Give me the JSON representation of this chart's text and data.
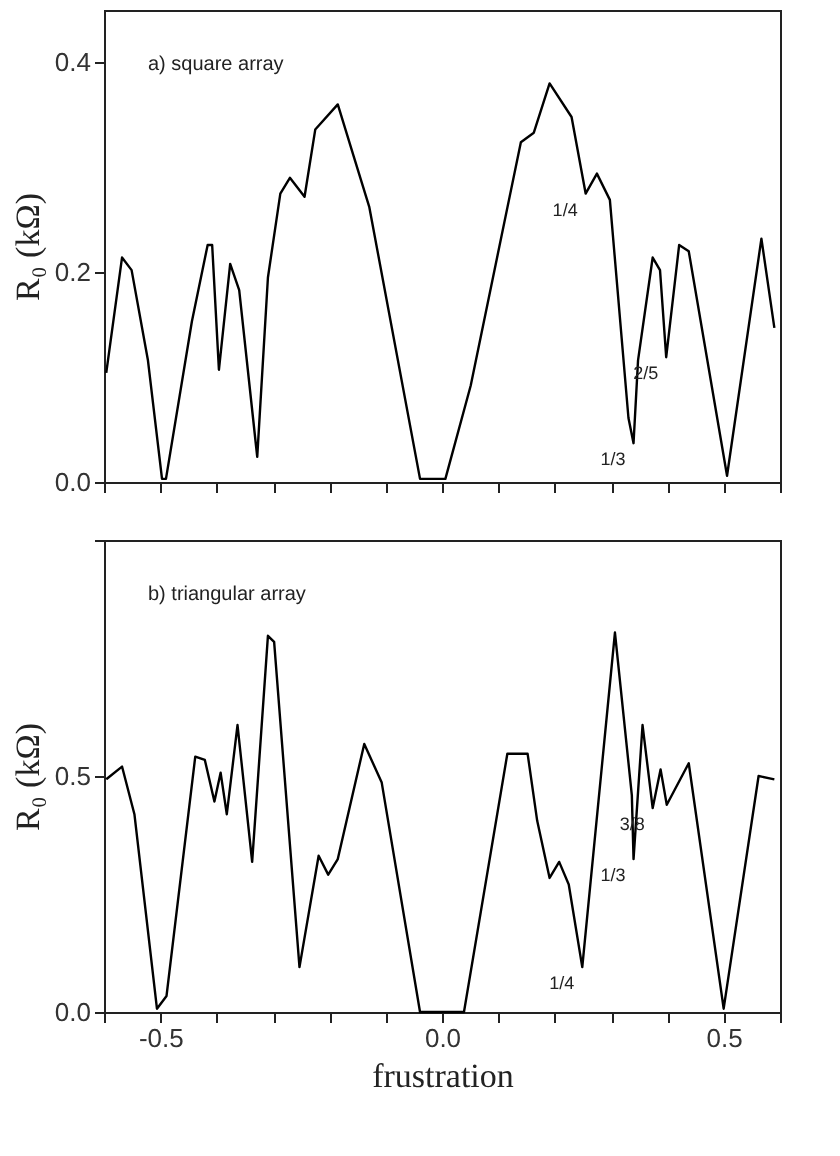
{
  "chart_data": [
    {
      "type": "line",
      "ylabel": "R₀ (kΩ)",
      "xlim": [
        -0.6,
        0.6
      ],
      "ylim": [
        0,
        0.45
      ],
      "xticks": [
        {
          "value": -0.6,
          "label": null
        },
        {
          "value": -0.5,
          "label": null
        },
        {
          "value": -0.4,
          "label": null
        },
        {
          "value": -0.3,
          "label": null
        },
        {
          "value": -0.2,
          "label": null
        },
        {
          "value": -0.1,
          "label": null
        },
        {
          "value": 0,
          "label": null
        },
        {
          "value": 0.1,
          "label": null
        },
        {
          "value": 0.2,
          "label": null
        },
        {
          "value": 0.3,
          "label": null
        },
        {
          "value": 0.4,
          "label": null
        },
        {
          "value": 0.5,
          "label": null
        },
        {
          "value": 0.6,
          "label": null
        }
      ],
      "yticks": [
        {
          "value": 0,
          "label": "0.0"
        },
        {
          "value": 0.2,
          "label": "0.2"
        },
        {
          "value": 0.4,
          "label": "0.4"
        }
      ],
      "tick_labels": "y",
      "grid": false,
      "legend": false,
      "marker": "none",
      "line_style": "solid",
      "x": [
        -0.596,
        -0.568,
        -0.551,
        -0.522,
        -0.497,
        -0.49,
        -0.444,
        -0.416,
        -0.408,
        -0.396,
        -0.376,
        -0.36,
        -0.328,
        -0.309,
        -0.287,
        -0.27,
        -0.244,
        -0.225,
        -0.185,
        -0.157,
        -0.129,
        -0.039,
        0.006,
        0.051,
        0.14,
        0.163,
        0.191,
        0.23,
        0.255,
        0.275,
        0.298,
        0.331,
        0.34,
        0.348,
        0.374,
        0.387,
        0.398,
        0.421,
        0.438,
        0.506,
        0.567,
        0.59
      ],
      "series": [
        {
          "color": "#000000",
          "values": [
            0.104,
            0.214,
            0.202,
            0.116,
            0.003,
            0.003,
            0.153,
            0.226,
            0.226,
            0.107,
            0.208,
            0.183,
            0.024,
            0.195,
            0.275,
            0.29,
            0.272,
            0.336,
            0.36,
            0.311,
            0.262,
            0.003,
            0.003,
            0.092,
            0.324,
            0.333,
            0.38,
            0.348,
            0.275,
            0.294,
            0.269,
            0.061,
            0.037,
            0.116,
            0.214,
            0.202,
            0.119,
            0.226,
            0.22,
            0.006,
            0.232,
            0.147
          ]
        }
      ],
      "annotations": [
        "a) square array",
        {
          "text": "1/4",
          "x": 0.255,
          "y": 0.275
        },
        {
          "text": "2/5",
          "x": 0.398,
          "y": 0.119
        },
        {
          "text": "1/3",
          "x": 0.34,
          "y": 0.037
        }
      ]
    },
    {
      "type": "line",
      "xlabel": "frustration",
      "ylabel": "R₀ (kΩ)",
      "xlim": [
        -0.6,
        0.6
      ],
      "ylim": [
        0,
        1.0
      ],
      "xticks": [
        {
          "value": -0.6,
          "label": null
        },
        -0.5,
        {
          "value": -0.4,
          "label": null
        },
        {
          "value": -0.3,
          "label": null
        },
        {
          "value": -0.2,
          "label": null
        },
        {
          "value": -0.1,
          "label": null
        },
        {
          "value": 0,
          "label": "0.0"
        },
        {
          "value": 0.1,
          "label": null
        },
        {
          "value": 0.2,
          "label": null
        },
        {
          "value": 0.3,
          "label": null
        },
        {
          "value": 0.4,
          "label": null
        },
        0.5,
        {
          "value": 0.6,
          "label": null
        }
      ],
      "yticks": [
        {
          "value": 0,
          "label": "0.0"
        },
        {
          "value": 0.5,
          "label": "0.5"
        },
        {
          "value": 1.0,
          "label": null
        }
      ],
      "grid": false,
      "legend": false,
      "marker": "none",
      "line_style": "solid",
      "x": [
        -0.596,
        -0.568,
        -0.546,
        -0.506,
        -0.489,
        -0.438,
        -0.421,
        -0.404,
        -0.393,
        -0.382,
        -0.363,
        -0.337,
        -0.309,
        -0.298,
        -0.253,
        -0.219,
        -0.202,
        -0.185,
        -0.138,
        -0.107,
        -0.039,
        0.039,
        0.116,
        0.152,
        0.169,
        0.191,
        0.208,
        0.225,
        0.249,
        0.307,
        0.337,
        0.34,
        0.356,
        0.374,
        0.388,
        0.399,
        0.438,
        0.5,
        0.562,
        0.59
      ],
      "series": [
        {
          "color": "#000000",
          "values": [
            0.493,
            0.52,
            0.419,
            0.007,
            0.034,
            0.541,
            0.534,
            0.446,
            0.507,
            0.419,
            0.608,
            0.318,
            0.797,
            0.784,
            0.095,
            0.331,
            0.291,
            0.324,
            0.568,
            0.486,
            0.0,
            0.0,
            0.547,
            0.547,
            0.405,
            0.284,
            0.318,
            0.27,
            0.095,
            0.804,
            0.459,
            0.324,
            0.608,
            0.432,
            0.514,
            0.439,
            0.527,
            0.007,
            0.5,
            0.493
          ]
        }
      ],
      "annotations": [
        "b) triangular array",
        {
          "text": "3/8",
          "x": 0.374,
          "y": 0.432
        },
        {
          "text": "1/3",
          "x": 0.34,
          "y": 0.324
        },
        {
          "text": "1/4",
          "x": 0.249,
          "y": 0.095
        }
      ]
    }
  ]
}
